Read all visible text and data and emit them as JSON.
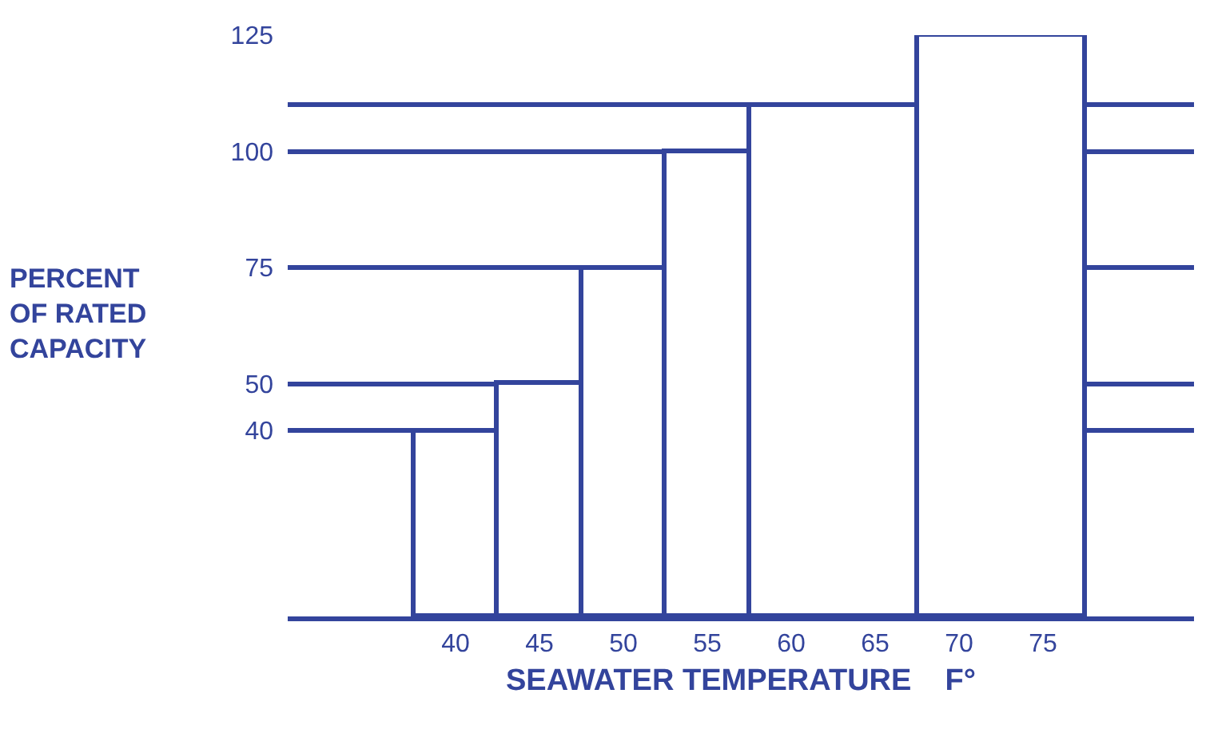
{
  "chart_data": {
    "type": "histogram",
    "xlabel": "SEAWATER TEMPERATURE    F°",
    "ylabel": "PERCENT\nOF RATED\nCAPACITY",
    "bins": [
      37.5,
      42.5,
      47.5,
      52.5,
      57.5,
      67.5,
      77.5
    ],
    "values": [
      40,
      50,
      75,
      100,
      110,
      125
    ],
    "color": "#33449c",
    "xlim": [
      30,
      84
    ],
    "xticks": [
      40,
      45,
      50,
      55,
      60,
      65,
      70,
      75
    ],
    "ylim": [
      0,
      125
    ],
    "yticks": [
      40,
      50,
      75,
      100,
      {
        "value": 110,
        "label": null
      },
      125
    ],
    "grid": "y"
  }
}
